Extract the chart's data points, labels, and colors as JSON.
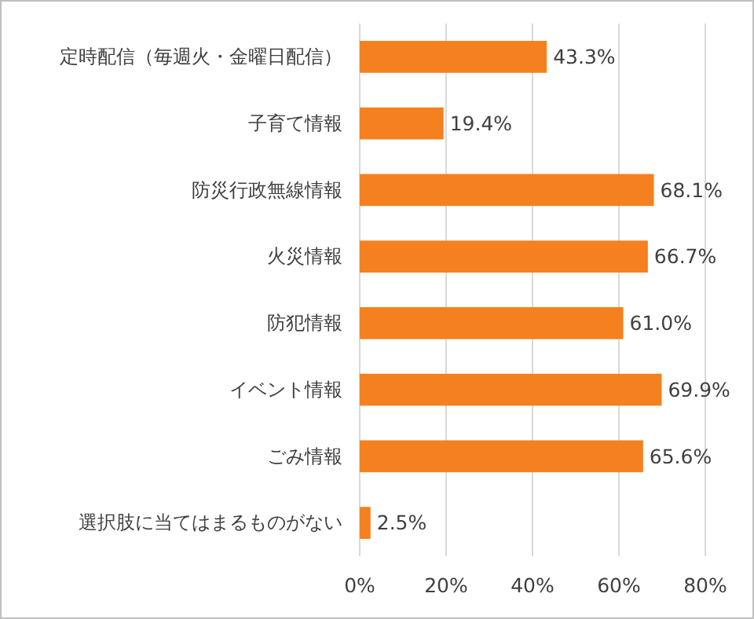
{
  "chart_data": {
    "type": "bar",
    "orientation": "horizontal",
    "categories": [
      "定時配信（毎週火・金曜日配信）",
      "子育て情報",
      "防災行政無線情報",
      "火災情報",
      "防犯情報",
      "イベント情報",
      "ごみ情報",
      "選択肢に当てはまるものがない"
    ],
    "values": [
      43.3,
      19.4,
      68.1,
      66.7,
      61.0,
      69.9,
      65.6,
      2.5
    ],
    "value_labels": [
      "43.3%",
      "19.4%",
      "68.1%",
      "66.7%",
      "61.0%",
      "69.9%",
      "65.6%",
      "2.5%"
    ],
    "color": "#f5801f",
    "xlim": [
      0,
      80
    ],
    "xticks": [
      {
        "value": 0,
        "label": "0%"
      },
      {
        "value": 20,
        "label": "20%"
      },
      {
        "value": 40,
        "label": "40%"
      },
      {
        "value": 60,
        "label": "60%"
      },
      {
        "value": 80,
        "label": "80%"
      }
    ],
    "grid": "x"
  }
}
